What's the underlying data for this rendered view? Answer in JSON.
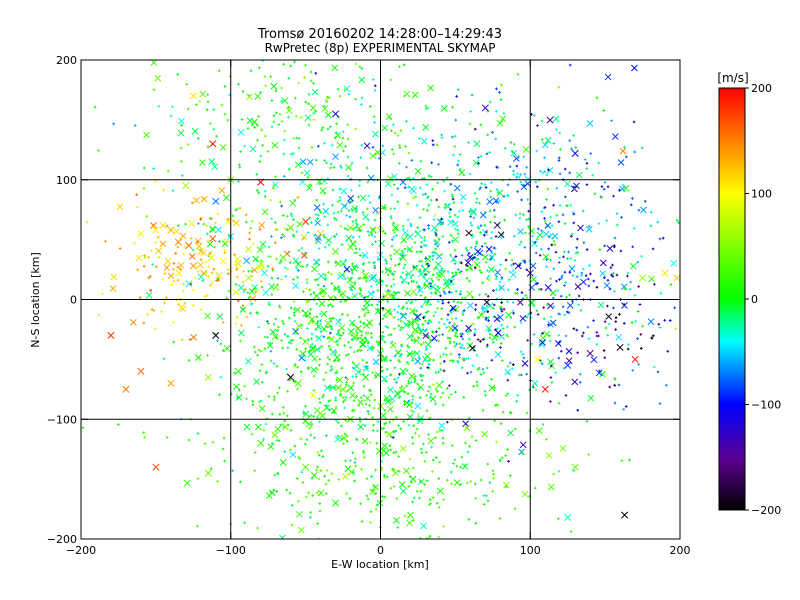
{
  "chart_data": {
    "type": "scatter",
    "title": "Tromsø 20160202 14:28:00–14:29:43",
    "subtitle": "RwPretec (8p) EXPERIMENTAL SKYMAP",
    "xlabel": "E-W location [km]",
    "ylabel": "N-S location [km]",
    "xlim": [
      -200,
      200
    ],
    "ylim": [
      -200,
      200
    ],
    "xticks": [
      -200,
      -100,
      0,
      100,
      200
    ],
    "yticks": [
      -200,
      -100,
      0,
      100,
      200
    ],
    "xtick_labels": [
      "−200",
      "−100",
      "0",
      "100",
      "200"
    ],
    "ytick_labels": [
      "−200",
      "−100",
      "0",
      "100",
      "200"
    ],
    "grid": true,
    "markers": [
      "cross",
      "x"
    ],
    "colorbar": {
      "label": "[m/s]",
      "range": [
        -200,
        200
      ],
      "ticks": [
        200,
        100,
        0,
        -100,
        -200
      ],
      "tick_labels": [
        "200",
        "100",
        "0",
        "−100",
        "−200"
      ],
      "colormap": [
        "#000000",
        "#6a00a8",
        "#0000ff",
        "#00ffff",
        "#00ff00",
        "#ffff00",
        "#ff0000"
      ]
    },
    "series": [
      {
        "marker": "x",
        "points": [
          [
            -125,
            170,
            110
          ],
          [
            -112,
            130,
            190
          ],
          [
            -45,
            160,
            20
          ],
          [
            -30,
            155,
            -110
          ],
          [
            -100,
            100,
            40
          ],
          [
            -80,
            98,
            200
          ],
          [
            -130,
            95,
            60
          ],
          [
            -110,
            82,
            -70
          ],
          [
            -140,
            58,
            130
          ],
          [
            -135,
            48,
            150
          ],
          [
            -128,
            45,
            160
          ],
          [
            -120,
            40,
            120
          ],
          [
            -113,
            35,
            90
          ],
          [
            -105,
            32,
            100
          ],
          [
            -95,
            30,
            80
          ],
          [
            -125,
            28,
            140
          ],
          [
            -118,
            22,
            130
          ],
          [
            -108,
            20,
            110
          ],
          [
            -88,
            18,
            70
          ],
          [
            -60,
            60,
            30
          ],
          [
            -50,
            65,
            180
          ],
          [
            -40,
            55,
            120
          ],
          [
            -20,
            60,
            40
          ],
          [
            -5,
            58,
            10
          ],
          [
            10,
            60,
            0
          ],
          [
            25,
            55,
            -20
          ],
          [
            40,
            65,
            -60
          ],
          [
            50,
            50,
            10
          ],
          [
            65,
            40,
            -90
          ],
          [
            78,
            62,
            -170
          ],
          [
            92,
            28,
            -110
          ],
          [
            100,
            22,
            -140
          ],
          [
            112,
            10,
            -100
          ],
          [
            -180,
            -30,
            180
          ],
          [
            -160,
            -60,
            160
          ],
          [
            -170,
            -75,
            150
          ],
          [
            -140,
            -70,
            140
          ],
          [
            -115,
            -65,
            60
          ],
          [
            -110,
            -30,
            -200
          ],
          [
            -95,
            -60,
            10
          ],
          [
            -60,
            -65,
            -190
          ],
          [
            -55,
            -70,
            20
          ],
          [
            -45,
            -80,
            90
          ],
          [
            -25,
            -75,
            40
          ],
          [
            -10,
            -65,
            10
          ],
          [
            0,
            -45,
            0
          ],
          [
            15,
            -60,
            -10
          ],
          [
            30,
            -50,
            -30
          ],
          [
            -40,
            -95,
            50
          ],
          [
            -20,
            -100,
            10
          ],
          [
            5,
            -85,
            -5
          ],
          [
            -150,
            -140,
            170
          ],
          [
            -115,
            -145,
            40
          ],
          [
            -80,
            -120,
            20
          ],
          [
            -50,
            -140,
            30
          ],
          [
            -30,
            -170,
            10
          ],
          [
            20,
            -180,
            20
          ],
          [
            40,
            -160,
            10
          ],
          [
            105,
            -50,
            100
          ],
          [
            110,
            -75,
            190
          ],
          [
            125,
            -55,
            -90
          ],
          [
            140,
            -45,
            -160
          ],
          [
            160,
            -40,
            -190
          ],
          [
            170,
            -50,
            190
          ],
          [
            175,
            18,
            60
          ],
          [
            190,
            22,
            110
          ],
          [
            198,
            18,
            120
          ],
          [
            162,
            124,
            150
          ],
          [
            130,
            122,
            -100
          ],
          [
            70,
            160,
            -120
          ],
          [
            -150,
            58,
            100
          ],
          [
            -160,
            55,
            100
          ],
          [
            130,
            -140,
            40
          ],
          [
            125,
            -182,
            -30
          ],
          [
            163,
            -180,
            -200
          ],
          [
            -65,
            35,
            30
          ],
          [
            -30,
            40,
            25
          ],
          [
            15,
            35,
            5
          ],
          [
            30,
            25,
            -15
          ],
          [
            45,
            15,
            -30
          ],
          [
            -10,
            20,
            20
          ],
          [
            -25,
            5,
            30
          ],
          [
            5,
            -10,
            15
          ],
          [
            20,
            -20,
            10
          ],
          [
            -35,
            -20,
            35
          ],
          [
            -50,
            -35,
            40
          ],
          [
            60,
            -5,
            -50
          ],
          [
            80,
            -15,
            -70
          ],
          [
            -70,
            10,
            50
          ],
          [
            -5,
            120,
            30
          ]
        ]
      }
    ]
  }
}
